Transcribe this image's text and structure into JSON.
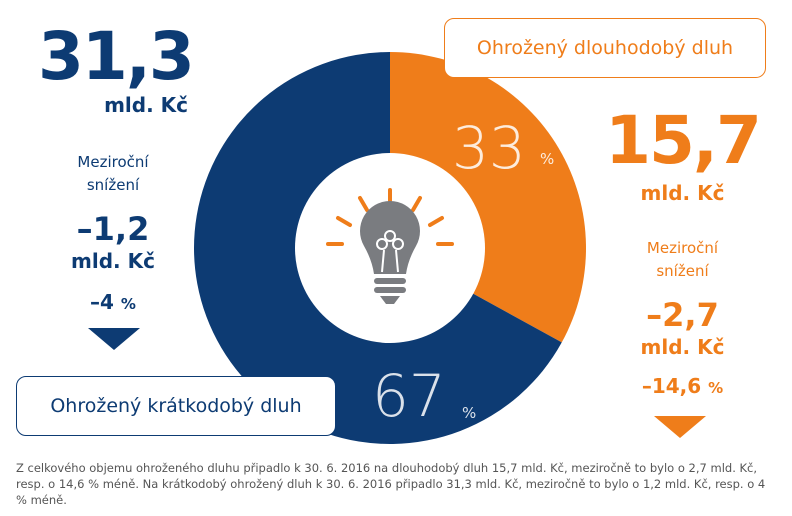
{
  "chart_data": {
    "type": "pie",
    "style": "donut",
    "categories": [
      "Ohrožený dlouhodobý dluh",
      "Ohrožený krátkodobý dluh"
    ],
    "values": [
      33,
      67
    ],
    "colors": [
      "#ef7d1a",
      "#0d3b73"
    ]
  },
  "slices": {
    "long": {
      "value": "33",
      "unit": "%"
    },
    "short": {
      "value": "67",
      "unit": "%"
    }
  },
  "left": {
    "amount": "31,3",
    "unit": "mld. Kč",
    "change_label_1": "Meziroční",
    "change_label_2": "snížení",
    "change_value": "–1,2",
    "change_unit": "mld. Kč",
    "change_pct": "–4",
    "pct_unit": "%",
    "arrow": "triangle-down-icon"
  },
  "right": {
    "amount": "15,7",
    "unit": "mld. Kč",
    "change_label_1": "Meziroční",
    "change_label_2": "snížení",
    "change_value": "–2,7",
    "change_unit": "mld. Kč",
    "change_pct": "–14,6",
    "pct_unit": "%",
    "arrow": "triangle-down-icon"
  },
  "labels": {
    "long_box": "Ohrožený dlouhodobý dluh",
    "short_box": "Ohrožený krátkodobý dluh"
  },
  "center_icon": "lightbulb-icon",
  "note": "Z celkového objemu ohroženého dluhu připadlo k 30. 6. 2016 na dlouhodobý dluh 15,7 mld. Kč, meziročně to bylo o 2,7 mld. Kč, resp. o 14,6 % méně. Na krátkodobý ohrožený dluh k 30. 6. 2016 připadlo 31,3 mld. Kč, meziročně to bylo o 1,2 mld. Kč, resp. o 4 % méně."
}
